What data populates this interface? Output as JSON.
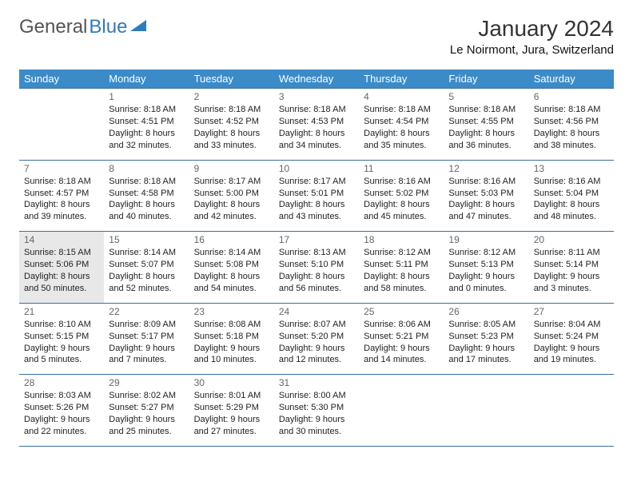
{
  "logo": {
    "part1": "General",
    "part2": "Blue"
  },
  "title": "January 2024",
  "subtitle": "Le Noirmont, Jura, Switzerland",
  "colors": {
    "header_bg": "#3b8bc9",
    "header_text": "#ffffff",
    "row_border": "#3b6fa0",
    "today_bg": "#e8e8e8",
    "logo_gray": "#555555",
    "logo_blue": "#2f7bbf"
  },
  "daysOfWeek": [
    "Sunday",
    "Monday",
    "Tuesday",
    "Wednesday",
    "Thursday",
    "Friday",
    "Saturday"
  ],
  "todayDate": 14,
  "weeks": [
    [
      null,
      {
        "n": 1,
        "sr": "8:18 AM",
        "ss": "4:51 PM",
        "dl": "8 hours and 32 minutes."
      },
      {
        "n": 2,
        "sr": "8:18 AM",
        "ss": "4:52 PM",
        "dl": "8 hours and 33 minutes."
      },
      {
        "n": 3,
        "sr": "8:18 AM",
        "ss": "4:53 PM",
        "dl": "8 hours and 34 minutes."
      },
      {
        "n": 4,
        "sr": "8:18 AM",
        "ss": "4:54 PM",
        "dl": "8 hours and 35 minutes."
      },
      {
        "n": 5,
        "sr": "8:18 AM",
        "ss": "4:55 PM",
        "dl": "8 hours and 36 minutes."
      },
      {
        "n": 6,
        "sr": "8:18 AM",
        "ss": "4:56 PM",
        "dl": "8 hours and 38 minutes."
      }
    ],
    [
      {
        "n": 7,
        "sr": "8:18 AM",
        "ss": "4:57 PM",
        "dl": "8 hours and 39 minutes."
      },
      {
        "n": 8,
        "sr": "8:18 AM",
        "ss": "4:58 PM",
        "dl": "8 hours and 40 minutes."
      },
      {
        "n": 9,
        "sr": "8:17 AM",
        "ss": "5:00 PM",
        "dl": "8 hours and 42 minutes."
      },
      {
        "n": 10,
        "sr": "8:17 AM",
        "ss": "5:01 PM",
        "dl": "8 hours and 43 minutes."
      },
      {
        "n": 11,
        "sr": "8:16 AM",
        "ss": "5:02 PM",
        "dl": "8 hours and 45 minutes."
      },
      {
        "n": 12,
        "sr": "8:16 AM",
        "ss": "5:03 PM",
        "dl": "8 hours and 47 minutes."
      },
      {
        "n": 13,
        "sr": "8:16 AM",
        "ss": "5:04 PM",
        "dl": "8 hours and 48 minutes."
      }
    ],
    [
      {
        "n": 14,
        "sr": "8:15 AM",
        "ss": "5:06 PM",
        "dl": "8 hours and 50 minutes."
      },
      {
        "n": 15,
        "sr": "8:14 AM",
        "ss": "5:07 PM",
        "dl": "8 hours and 52 minutes."
      },
      {
        "n": 16,
        "sr": "8:14 AM",
        "ss": "5:08 PM",
        "dl": "8 hours and 54 minutes."
      },
      {
        "n": 17,
        "sr": "8:13 AM",
        "ss": "5:10 PM",
        "dl": "8 hours and 56 minutes."
      },
      {
        "n": 18,
        "sr": "8:12 AM",
        "ss": "5:11 PM",
        "dl": "8 hours and 58 minutes."
      },
      {
        "n": 19,
        "sr": "8:12 AM",
        "ss": "5:13 PM",
        "dl": "9 hours and 0 minutes."
      },
      {
        "n": 20,
        "sr": "8:11 AM",
        "ss": "5:14 PM",
        "dl": "9 hours and 3 minutes."
      }
    ],
    [
      {
        "n": 21,
        "sr": "8:10 AM",
        "ss": "5:15 PM",
        "dl": "9 hours and 5 minutes."
      },
      {
        "n": 22,
        "sr": "8:09 AM",
        "ss": "5:17 PM",
        "dl": "9 hours and 7 minutes."
      },
      {
        "n": 23,
        "sr": "8:08 AM",
        "ss": "5:18 PM",
        "dl": "9 hours and 10 minutes."
      },
      {
        "n": 24,
        "sr": "8:07 AM",
        "ss": "5:20 PM",
        "dl": "9 hours and 12 minutes."
      },
      {
        "n": 25,
        "sr": "8:06 AM",
        "ss": "5:21 PM",
        "dl": "9 hours and 14 minutes."
      },
      {
        "n": 26,
        "sr": "8:05 AM",
        "ss": "5:23 PM",
        "dl": "9 hours and 17 minutes."
      },
      {
        "n": 27,
        "sr": "8:04 AM",
        "ss": "5:24 PM",
        "dl": "9 hours and 19 minutes."
      }
    ],
    [
      {
        "n": 28,
        "sr": "8:03 AM",
        "ss": "5:26 PM",
        "dl": "9 hours and 22 minutes."
      },
      {
        "n": 29,
        "sr": "8:02 AM",
        "ss": "5:27 PM",
        "dl": "9 hours and 25 minutes."
      },
      {
        "n": 30,
        "sr": "8:01 AM",
        "ss": "5:29 PM",
        "dl": "9 hours and 27 minutes."
      },
      {
        "n": 31,
        "sr": "8:00 AM",
        "ss": "5:30 PM",
        "dl": "9 hours and 30 minutes."
      },
      null,
      null,
      null
    ]
  ],
  "labels": {
    "sunrise": "Sunrise:",
    "sunset": "Sunset:",
    "daylight": "Daylight:"
  }
}
